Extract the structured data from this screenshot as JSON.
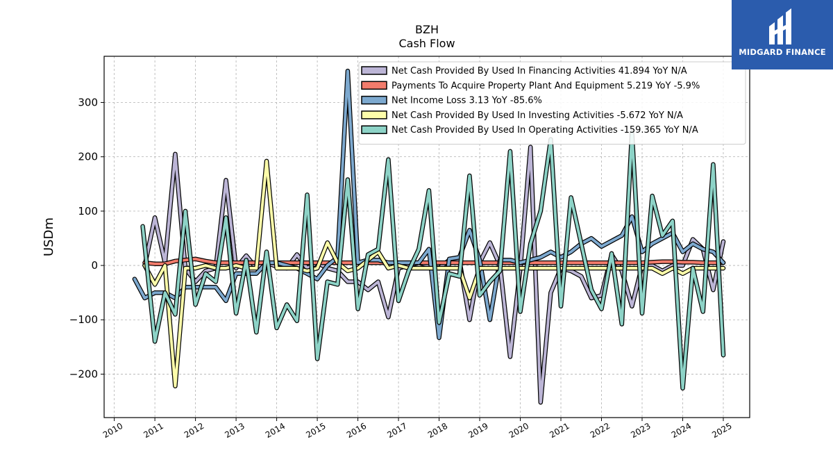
{
  "brand": {
    "name": "MIDGARD FINANCE",
    "logo_icon": "midgard-logo-icon"
  },
  "chart_data": {
    "type": "line",
    "title": "BZH",
    "subtitle": "Cash Flow",
    "xlabel": "",
    "ylabel": "USDm",
    "xlim": [
      2009.75,
      2025.65
    ],
    "ylim": [
      -280,
      385
    ],
    "yticks": [
      -200,
      -100,
      0,
      100,
      200,
      300
    ],
    "yticklabels": [
      "−200",
      "−100",
      "0",
      "100",
      "200",
      "300"
    ],
    "xticks": [
      2010,
      2011,
      2012,
      2013,
      2014,
      2015,
      2016,
      2017,
      2018,
      2019,
      2020,
      2021,
      2022,
      2023,
      2024,
      2025
    ],
    "grid": true,
    "legend_position": "top-right",
    "series": [
      {
        "name": "Net Cash Provided By Used In Financing Activities",
        "legend": "Net Cash Provided By Used In Financing Activities  41.894 YoY N/A",
        "color": "#bcb5d6",
        "points": [
          [
            2010.75,
            0
          ],
          [
            2011.0,
            88
          ],
          [
            2011.25,
            5
          ],
          [
            2011.5,
            205
          ],
          [
            2011.75,
            -5
          ],
          [
            2012.0,
            -30
          ],
          [
            2012.25,
            -10
          ],
          [
            2012.5,
            -5
          ],
          [
            2012.75,
            157
          ],
          [
            2013.0,
            -5
          ],
          [
            2013.25,
            18
          ],
          [
            2013.5,
            -5
          ],
          [
            2013.75,
            5
          ],
          [
            2014.0,
            -2
          ],
          [
            2014.25,
            -5
          ],
          [
            2014.5,
            20
          ],
          [
            2014.75,
            -5
          ],
          [
            2015.0,
            5
          ],
          [
            2015.25,
            -5
          ],
          [
            2015.5,
            -10
          ],
          [
            2015.75,
            -30
          ],
          [
            2016.0,
            -30
          ],
          [
            2016.25,
            -45
          ],
          [
            2016.5,
            -30
          ],
          [
            2016.75,
            -95
          ],
          [
            2017.0,
            -5
          ],
          [
            2017.25,
            0
          ],
          [
            2017.5,
            5
          ],
          [
            2017.75,
            0
          ],
          [
            2018.0,
            -5
          ],
          [
            2018.25,
            10
          ],
          [
            2018.5,
            10
          ],
          [
            2018.75,
            -100
          ],
          [
            2019.0,
            5
          ],
          [
            2019.25,
            42
          ],
          [
            2019.5,
            0
          ],
          [
            2019.75,
            -168
          ],
          [
            2020.0,
            -5
          ],
          [
            2020.25,
            218
          ],
          [
            2020.5,
            -252
          ],
          [
            2020.75,
            -50
          ],
          [
            2021.0,
            -5
          ],
          [
            2021.25,
            -10
          ],
          [
            2021.5,
            -20
          ],
          [
            2021.75,
            -60
          ],
          [
            2022.0,
            -55
          ],
          [
            2022.25,
            20
          ],
          [
            2022.5,
            -10
          ],
          [
            2022.75,
            -75
          ],
          [
            2023.0,
            0
          ],
          [
            2023.25,
            0
          ],
          [
            2023.5,
            -10
          ],
          [
            2023.75,
            0
          ],
          [
            2024.0,
            0
          ],
          [
            2024.25,
            48
          ],
          [
            2024.5,
            30
          ],
          [
            2024.75,
            -45
          ],
          [
            2025.0,
            44
          ]
        ]
      },
      {
        "name": "Payments To Acquire Property Plant And Equipment",
        "legend": "Payments To Acquire Property Plant And Equipment  5.219 YoY -5.9%",
        "color": "#f27c6c",
        "points": [
          [
            2010.75,
            5
          ],
          [
            2011.0,
            3
          ],
          [
            2011.25,
            3
          ],
          [
            2011.5,
            8
          ],
          [
            2011.75,
            10
          ],
          [
            2012.0,
            12
          ],
          [
            2012.25,
            8
          ],
          [
            2012.5,
            5
          ],
          [
            2012.75,
            5
          ],
          [
            2013.0,
            5
          ],
          [
            2013.25,
            5
          ],
          [
            2013.5,
            5
          ],
          [
            2013.75,
            5
          ],
          [
            2014.0,
            5
          ],
          [
            2014.25,
            5
          ],
          [
            2014.5,
            5
          ],
          [
            2014.75,
            5
          ],
          [
            2015.0,
            5
          ],
          [
            2015.25,
            5
          ],
          [
            2015.5,
            5
          ],
          [
            2015.75,
            5
          ],
          [
            2016.0,
            5
          ],
          [
            2016.25,
            5
          ],
          [
            2016.5,
            5
          ],
          [
            2016.75,
            5
          ],
          [
            2017.0,
            5
          ],
          [
            2017.25,
            5
          ],
          [
            2017.5,
            5
          ],
          [
            2017.75,
            5
          ],
          [
            2018.0,
            5
          ],
          [
            2018.25,
            5
          ],
          [
            2018.5,
            5
          ],
          [
            2018.75,
            5
          ],
          [
            2019.0,
            5
          ],
          [
            2019.25,
            5
          ],
          [
            2019.5,
            5
          ],
          [
            2019.75,
            5
          ],
          [
            2020.0,
            5
          ],
          [
            2020.25,
            5
          ],
          [
            2020.5,
            5
          ],
          [
            2020.75,
            5
          ],
          [
            2021.0,
            5
          ],
          [
            2021.25,
            5
          ],
          [
            2021.5,
            5
          ],
          [
            2021.75,
            5
          ],
          [
            2022.0,
            5
          ],
          [
            2022.25,
            5
          ],
          [
            2022.5,
            5
          ],
          [
            2022.75,
            5
          ],
          [
            2023.0,
            5
          ],
          [
            2023.25,
            6
          ],
          [
            2023.5,
            7
          ],
          [
            2023.75,
            7
          ],
          [
            2024.0,
            6
          ],
          [
            2024.25,
            6
          ],
          [
            2024.5,
            5
          ],
          [
            2024.75,
            5
          ],
          [
            2025.0,
            5
          ]
        ]
      },
      {
        "name": "Net Income Loss",
        "legend": "Net Income Loss  3.13 YoY -85.6%",
        "color": "#7da9cf",
        "points": [
          [
            2010.5,
            -25
          ],
          [
            2010.75,
            -60
          ],
          [
            2011.0,
            -50
          ],
          [
            2011.25,
            -50
          ],
          [
            2011.5,
            -60
          ],
          [
            2011.75,
            -40
          ],
          [
            2012.0,
            -40
          ],
          [
            2012.25,
            -40
          ],
          [
            2012.5,
            -40
          ],
          [
            2012.75,
            -65
          ],
          [
            2013.0,
            -15
          ],
          [
            2013.25,
            -15
          ],
          [
            2013.5,
            -15
          ],
          [
            2013.75,
            5
          ],
          [
            2014.0,
            5
          ],
          [
            2014.25,
            0
          ],
          [
            2014.5,
            -5
          ],
          [
            2014.75,
            -15
          ],
          [
            2015.0,
            -25
          ],
          [
            2015.25,
            0
          ],
          [
            2015.5,
            15
          ],
          [
            2015.75,
            358
          ],
          [
            2016.0,
            5
          ],
          [
            2016.25,
            10
          ],
          [
            2016.5,
            10
          ],
          [
            2016.75,
            5
          ],
          [
            2017.0,
            5
          ],
          [
            2017.25,
            5
          ],
          [
            2017.5,
            5
          ],
          [
            2017.75,
            30
          ],
          [
            2018.0,
            -133
          ],
          [
            2018.25,
            12
          ],
          [
            2018.5,
            15
          ],
          [
            2018.75,
            65
          ],
          [
            2019.0,
            10
          ],
          [
            2019.25,
            -100
          ],
          [
            2019.5,
            10
          ],
          [
            2019.75,
            10
          ],
          [
            2020.0,
            5
          ],
          [
            2020.25,
            10
          ],
          [
            2020.5,
            15
          ],
          [
            2020.75,
            25
          ],
          [
            2021.0,
            15
          ],
          [
            2021.25,
            25
          ],
          [
            2021.5,
            40
          ],
          [
            2021.75,
            50
          ],
          [
            2022.0,
            35
          ],
          [
            2022.25,
            45
          ],
          [
            2022.5,
            55
          ],
          [
            2022.75,
            90
          ],
          [
            2023.0,
            25
          ],
          [
            2023.25,
            40
          ],
          [
            2023.5,
            50
          ],
          [
            2023.75,
            60
          ],
          [
            2024.0,
            25
          ],
          [
            2024.25,
            40
          ],
          [
            2024.5,
            30
          ],
          [
            2024.75,
            25
          ],
          [
            2025.0,
            5
          ]
        ]
      },
      {
        "name": "Net Cash Provided By Used In Investing Activities",
        "legend": "Net Cash Provided By Used In Investing Activities  -5.672 YoY N/A",
        "color": "#fdfdaa",
        "points": [
          [
            2010.75,
            0
          ],
          [
            2011.0,
            -35
          ],
          [
            2011.25,
            0
          ],
          [
            2011.5,
            -222
          ],
          [
            2011.75,
            -5
          ],
          [
            2012.0,
            -5
          ],
          [
            2012.25,
            0
          ],
          [
            2012.5,
            -5
          ],
          [
            2012.75,
            -5
          ],
          [
            2013.0,
            0
          ],
          [
            2013.25,
            -5
          ],
          [
            2013.5,
            -5
          ],
          [
            2013.75,
            192
          ],
          [
            2014.0,
            -5
          ],
          [
            2014.25,
            -5
          ],
          [
            2014.5,
            -5
          ],
          [
            2014.75,
            -10
          ],
          [
            2015.0,
            -5
          ],
          [
            2015.25,
            42
          ],
          [
            2015.5,
            5
          ],
          [
            2015.75,
            -10
          ],
          [
            2016.0,
            -5
          ],
          [
            2016.25,
            10
          ],
          [
            2016.5,
            25
          ],
          [
            2016.75,
            -5
          ],
          [
            2017.0,
            0
          ],
          [
            2017.25,
            -5
          ],
          [
            2017.5,
            -5
          ],
          [
            2017.75,
            -5
          ],
          [
            2018.0,
            -5
          ],
          [
            2018.25,
            -5
          ],
          [
            2018.5,
            -5
          ],
          [
            2018.75,
            -60
          ],
          [
            2019.0,
            -5
          ],
          [
            2019.25,
            -5
          ],
          [
            2019.5,
            -5
          ],
          [
            2019.75,
            -5
          ],
          [
            2020.0,
            -5
          ],
          [
            2020.25,
            -5
          ],
          [
            2020.5,
            -5
          ],
          [
            2020.75,
            -5
          ],
          [
            2021.0,
            -5
          ],
          [
            2021.25,
            -5
          ],
          [
            2021.5,
            -5
          ],
          [
            2021.75,
            -5
          ],
          [
            2022.0,
            -5
          ],
          [
            2022.25,
            -5
          ],
          [
            2022.5,
            -5
          ],
          [
            2022.75,
            -5
          ],
          [
            2023.0,
            -5
          ],
          [
            2023.25,
            -5
          ],
          [
            2023.5,
            -15
          ],
          [
            2023.75,
            -5
          ],
          [
            2024.0,
            -15
          ],
          [
            2024.25,
            -5
          ],
          [
            2024.5,
            -5
          ],
          [
            2024.75,
            -5
          ],
          [
            2025.0,
            -5
          ]
        ]
      },
      {
        "name": "Net Cash Provided By Used In Operating Activities",
        "legend": "Net Cash Provided By Used In Operating Activities  -159.365 YoY N/A",
        "color": "#8dd3c7",
        "points": [
          [
            2010.7,
            72
          ],
          [
            2011.0,
            -140
          ],
          [
            2011.25,
            -50
          ],
          [
            2011.5,
            -90
          ],
          [
            2011.75,
            100
          ],
          [
            2012.0,
            -72
          ],
          [
            2012.25,
            -15
          ],
          [
            2012.5,
            -30
          ],
          [
            2012.75,
            88
          ],
          [
            2013.0,
            -88
          ],
          [
            2013.25,
            10
          ],
          [
            2013.5,
            -123
          ],
          [
            2013.75,
            25
          ],
          [
            2014.0,
            -115
          ],
          [
            2014.25,
            -72
          ],
          [
            2014.5,
            -102
          ],
          [
            2014.75,
            130
          ],
          [
            2015.0,
            -172
          ],
          [
            2015.25,
            -30
          ],
          [
            2015.5,
            -35
          ],
          [
            2015.75,
            158
          ],
          [
            2016.0,
            -80
          ],
          [
            2016.25,
            20
          ],
          [
            2016.5,
            30
          ],
          [
            2016.75,
            195
          ],
          [
            2017.0,
            -65
          ],
          [
            2017.25,
            -10
          ],
          [
            2017.5,
            30
          ],
          [
            2017.75,
            138
          ],
          [
            2018.0,
            -105
          ],
          [
            2018.25,
            -15
          ],
          [
            2018.5,
            -20
          ],
          [
            2018.75,
            165
          ],
          [
            2019.0,
            -55
          ],
          [
            2019.25,
            -30
          ],
          [
            2019.5,
            -10
          ],
          [
            2019.75,
            210
          ],
          [
            2020.0,
            -85
          ],
          [
            2020.25,
            40
          ],
          [
            2020.5,
            100
          ],
          [
            2020.75,
            232
          ],
          [
            2021.0,
            -75
          ],
          [
            2021.25,
            125
          ],
          [
            2021.5,
            40
          ],
          [
            2021.75,
            -45
          ],
          [
            2022.0,
            -80
          ],
          [
            2022.25,
            22
          ],
          [
            2022.5,
            -108
          ],
          [
            2022.75,
            245
          ],
          [
            2023.0,
            -88
          ],
          [
            2023.25,
            128
          ],
          [
            2023.5,
            55
          ],
          [
            2023.75,
            82
          ],
          [
            2024.0,
            -226
          ],
          [
            2024.25,
            -5
          ],
          [
            2024.5,
            -85
          ],
          [
            2024.75,
            186
          ],
          [
            2025.0,
            -165
          ]
        ]
      }
    ]
  }
}
